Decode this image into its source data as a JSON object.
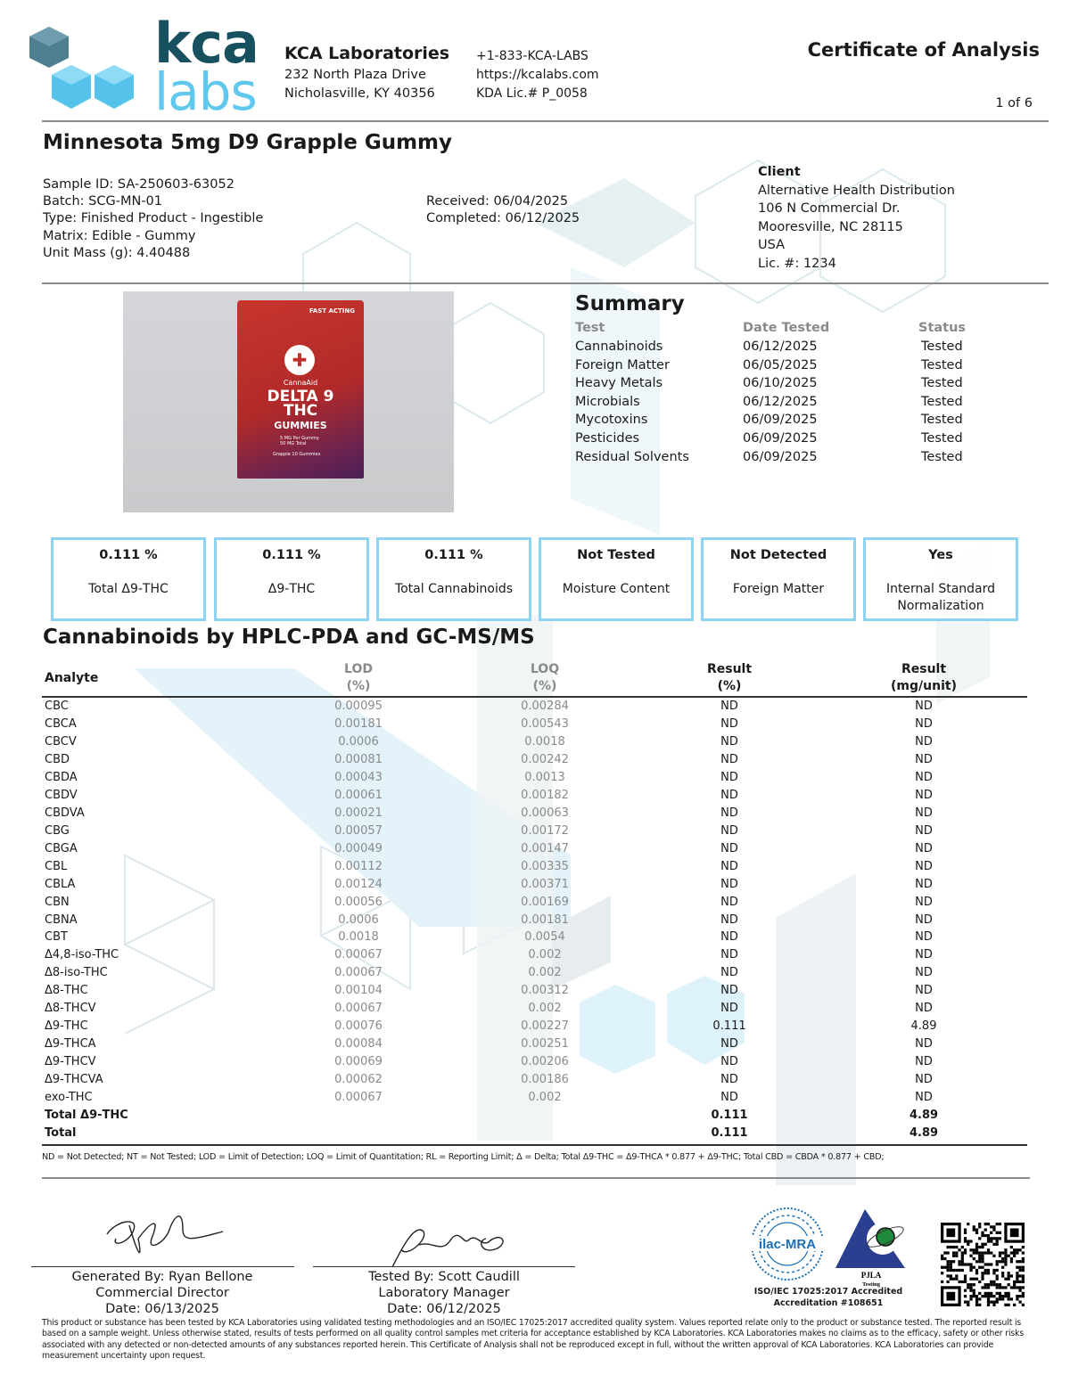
{
  "header": {
    "logo_text_top": "kca",
    "logo_text_bottom": "labs",
    "lab_name": "KCA Laboratories",
    "address_line1": "232 North Plaza Drive",
    "address_line2": "Nicholasville, KY 40356",
    "phone": "+1-833-KCA-LABS",
    "website": "https://kcalabs.com",
    "license": "KDA Lic.# P_0058",
    "doc_title": "Certificate of Analysis",
    "page": "1 of 6"
  },
  "product": {
    "title": "Minnesota 5mg D9 Grapple Gummy",
    "sample_id": "Sample ID: SA-250603-63052",
    "batch": "Batch: SCG-MN-01",
    "type": "Type: Finished Product - Ingestible",
    "matrix": "Matrix: Edible - Gummy",
    "unit_mass": "Unit Mass (g): 4.40488",
    "received": "Received: 06/04/2025",
    "completed": "Completed: 06/12/2025"
  },
  "client": {
    "heading": "Client",
    "name": "Alternative Health Distribution",
    "street": "106 N Commercial Dr.",
    "city": "Mooresville, NC 28115",
    "country": "USA",
    "license": "Lic. #: 1234"
  },
  "product_image": {
    "brand": "CannaAid",
    "badge": "FAST ACTING",
    "line1": "DELTA 9",
    "line2": "THC",
    "line3": "GUMMIES",
    "dose1": "5 MG Per Gummy",
    "dose2": "50 MG Total",
    "flavor": "Grapple 10 Gummies",
    "bag_color": "#c0302a"
  },
  "summary": {
    "title": "Summary",
    "headers": [
      "Test",
      "Date Tested",
      "Status"
    ],
    "rows": [
      {
        "test": "Cannabinoids",
        "date": "06/12/2025",
        "status": "Tested"
      },
      {
        "test": "Foreign Matter",
        "date": "06/05/2025",
        "status": "Tested"
      },
      {
        "test": "Heavy Metals",
        "date": "06/10/2025",
        "status": "Tested"
      },
      {
        "test": "Microbials",
        "date": "06/12/2025",
        "status": "Tested"
      },
      {
        "test": "Mycotoxins",
        "date": "06/09/2025",
        "status": "Tested"
      },
      {
        "test": "Pesticides",
        "date": "06/09/2025",
        "status": "Tested"
      },
      {
        "test": "Residual Solvents",
        "date": "06/09/2025",
        "status": "Tested"
      }
    ]
  },
  "highlights": [
    {
      "value": "0.111 %",
      "label": "Total Δ9-THC"
    },
    {
      "value": "0.111 %",
      "label": "Δ9-THC"
    },
    {
      "value": "0.111 %",
      "label": "Total Cannabinoids"
    },
    {
      "value": "Not Tested",
      "label": "Moisture Content"
    },
    {
      "value": "Not Detected",
      "label": "Foreign Matter"
    },
    {
      "value": "Yes",
      "label": "Internal Standard Normalization"
    }
  ],
  "cannabinoids": {
    "title": "Cannabinoids by HPLC-PDA and GC-MS/MS",
    "headers": {
      "analyte": "Analyte",
      "lod": "LOD",
      "lod_unit": "(%)",
      "loq": "LOQ",
      "loq_unit": "(%)",
      "result": "Result",
      "result_unit": "(%)",
      "result_mg": "Result",
      "result_mg_unit": "(mg/unit)"
    },
    "rows": [
      {
        "analyte": "CBC",
        "lod": "0.00095",
        "loq": "0.00284",
        "result": "ND",
        "mg": "ND"
      },
      {
        "analyte": "CBCA",
        "lod": "0.00181",
        "loq": "0.00543",
        "result": "ND",
        "mg": "ND"
      },
      {
        "analyte": "CBCV",
        "lod": "0.0006",
        "loq": "0.0018",
        "result": "ND",
        "mg": "ND"
      },
      {
        "analyte": "CBD",
        "lod": "0.00081",
        "loq": "0.00242",
        "result": "ND",
        "mg": "ND"
      },
      {
        "analyte": "CBDA",
        "lod": "0.00043",
        "loq": "0.0013",
        "result": "ND",
        "mg": "ND"
      },
      {
        "analyte": "CBDV",
        "lod": "0.00061",
        "loq": "0.00182",
        "result": "ND",
        "mg": "ND"
      },
      {
        "analyte": "CBDVA",
        "lod": "0.00021",
        "loq": "0.00063",
        "result": "ND",
        "mg": "ND"
      },
      {
        "analyte": "CBG",
        "lod": "0.00057",
        "loq": "0.00172",
        "result": "ND",
        "mg": "ND"
      },
      {
        "analyte": "CBGA",
        "lod": "0.00049",
        "loq": "0.00147",
        "result": "ND",
        "mg": "ND"
      },
      {
        "analyte": "CBL",
        "lod": "0.00112",
        "loq": "0.00335",
        "result": "ND",
        "mg": "ND"
      },
      {
        "analyte": "CBLA",
        "lod": "0.00124",
        "loq": "0.00371",
        "result": "ND",
        "mg": "ND"
      },
      {
        "analyte": "CBN",
        "lod": "0.00056",
        "loq": "0.00169",
        "result": "ND",
        "mg": "ND"
      },
      {
        "analyte": "CBNA",
        "lod": "0.0006",
        "loq": "0.00181",
        "result": "ND",
        "mg": "ND"
      },
      {
        "analyte": "CBT",
        "lod": "0.0018",
        "loq": "0.0054",
        "result": "ND",
        "mg": "ND"
      },
      {
        "analyte": "Δ4,8-iso-THC",
        "lod": "0.00067",
        "loq": "0.002",
        "result": "ND",
        "mg": "ND"
      },
      {
        "analyte": "Δ8-iso-THC",
        "lod": "0.00067",
        "loq": "0.002",
        "result": "ND",
        "mg": "ND"
      },
      {
        "analyte": "Δ8-THC",
        "lod": "0.00104",
        "loq": "0.00312",
        "result": "ND",
        "mg": "ND"
      },
      {
        "analyte": "Δ8-THCV",
        "lod": "0.00067",
        "loq": "0.002",
        "result": "ND",
        "mg": "ND"
      },
      {
        "analyte": "Δ9-THC",
        "lod": "0.00076",
        "loq": "0.00227",
        "result": "0.111",
        "mg": "4.89"
      },
      {
        "analyte": "Δ9-THCA",
        "lod": "0.00084",
        "loq": "0.00251",
        "result": "ND",
        "mg": "ND"
      },
      {
        "analyte": "Δ9-THCV",
        "lod": "0.00069",
        "loq": "0.00206",
        "result": "ND",
        "mg": "ND"
      },
      {
        "analyte": "Δ9-THCVA",
        "lod": "0.00062",
        "loq": "0.00186",
        "result": "ND",
        "mg": "ND"
      },
      {
        "analyte": "exo-THC",
        "lod": "0.00067",
        "loq": "0.002",
        "result": "ND",
        "mg": "ND"
      }
    ],
    "totals": [
      {
        "analyte": "Total Δ9-THC",
        "result": "0.111",
        "mg": "4.89"
      },
      {
        "analyte": "Total",
        "result": "0.111",
        "mg": "4.89"
      }
    ],
    "footnote": "ND = Not Detected; NT = Not Tested; LOD = Limit of Detection; LOQ = Limit of Quantitation; RL = Reporting Limit; Δ = Delta; Total Δ9-THC = Δ9-THCA * 0.877 + Δ9-THC; Total CBD = CBDA * 0.877 + CBD;"
  },
  "signatures": [
    {
      "line1": "Generated By: Ryan Bellone",
      "line2": "Commercial Director",
      "line3": "Date: 06/13/2025"
    },
    {
      "line1": "Tested By: Scott Caudill",
      "line2": "Laboratory Manager",
      "line3": "Date: 06/12/2025"
    }
  ],
  "accreditation": {
    "ilac_logo": "ilac-MRA",
    "pjla_logo": "PJLA",
    "pjla_sub": "Testing",
    "line1": "ISO/IEC 17025:2017 Accredited",
    "line2": "Accreditation #108651"
  },
  "disclaimer": "This product or substance has been tested by KCA Laboratories using validated testing methodologies and an ISO/IEC 17025:2017 accredited quality system. Values reported relate only to the product or substance tested. The reported result is based on a sample weight. Unless otherwise stated, results of tests performed on all quality control samples met criteria for acceptance established by KCA Laboratories. KCA Laboratories makes no claims as to the efficacy, safety or other risks associated with any detected or non-detected amounts of any substances reported herein. This Certificate of Analysis shall not be reproduced except in full, without the written approval of KCA Laboratories. KCA Laboratories can provide measurement uncertainty upon request.",
  "colors": {
    "brand_dark": "#17505f",
    "brand_light": "#5fc8ec",
    "box_border": "#8fd3f4"
  }
}
